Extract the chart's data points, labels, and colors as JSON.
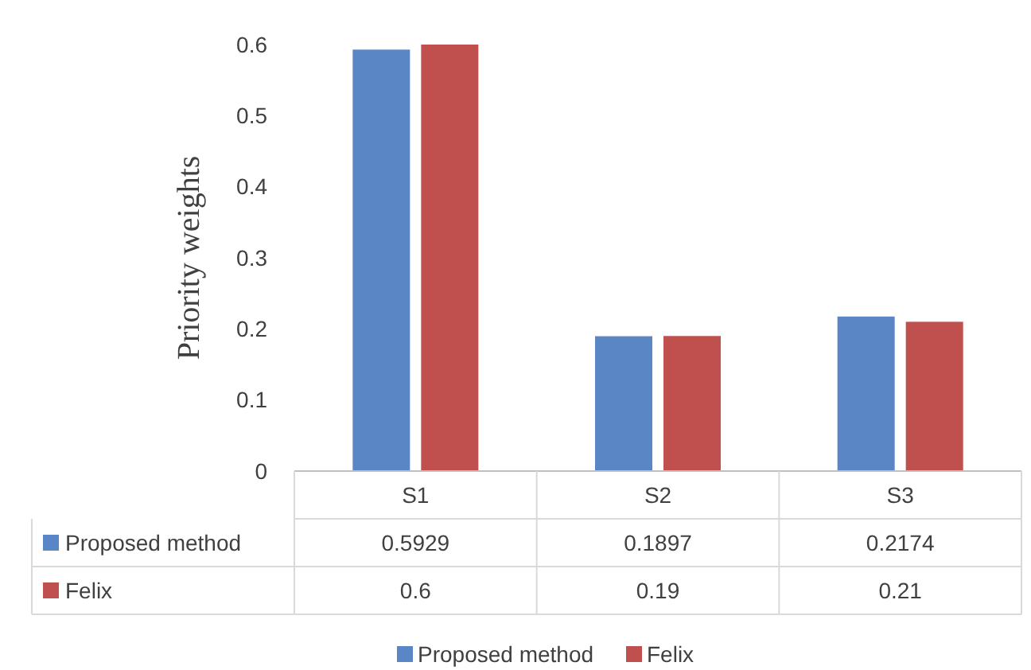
{
  "chart_data": {
    "type": "bar",
    "ylabel": "Priority weights",
    "categories": [
      "S1",
      "S2",
      "S3"
    ],
    "series": [
      {
        "name": "Proposed method",
        "color": "#5b86c5",
        "values": [
          0.5929,
          0.1897,
          0.2174
        ]
      },
      {
        "name": "Felix",
        "color": "#c0504d",
        "values": [
          0.6,
          0.19,
          0.21
        ]
      }
    ],
    "ylim": [
      0,
      0.6
    ],
    "yticks": [
      0,
      0.1,
      0.2,
      0.3,
      0.4,
      0.5,
      0.6
    ],
    "data_labels": true,
    "legend": "bottom"
  }
}
